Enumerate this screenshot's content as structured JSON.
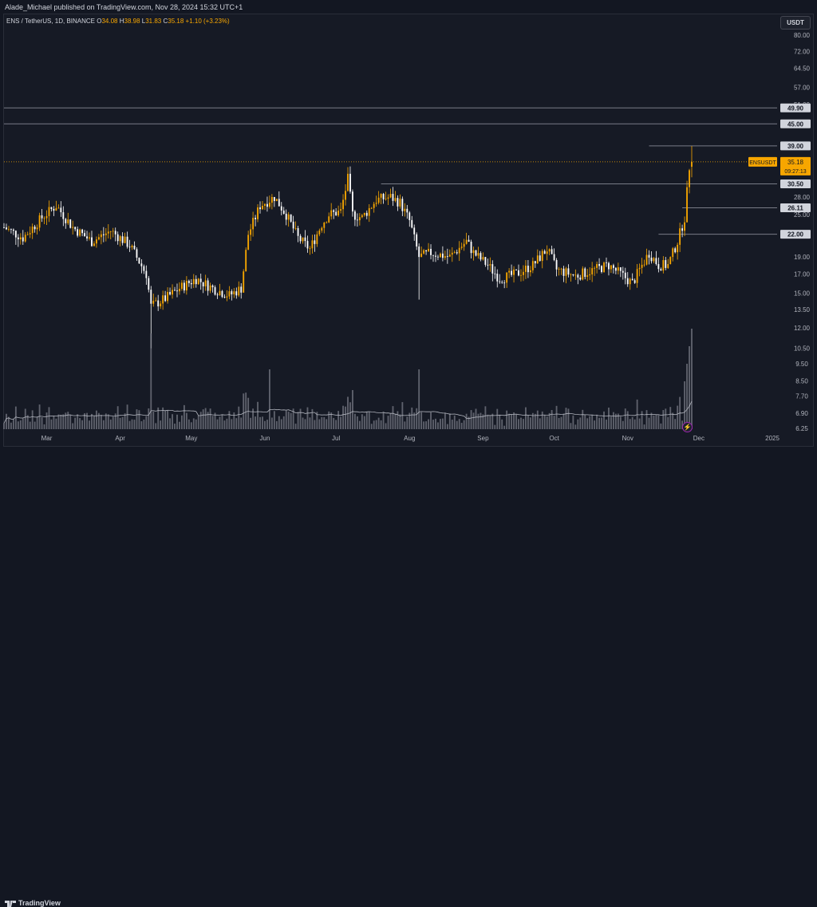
{
  "header": {
    "publisher_text": "Alade_Michael published on TradingView.com, Nov 28, 2024 15:32 UTC+1"
  },
  "legend": {
    "symbol": "ENS / TetherUS, 1D, BINANCE",
    "open_label": "O",
    "open": "34.08",
    "high_label": "H",
    "high": "38.98",
    "low_label": "L",
    "low": "31.83",
    "close_label": "C",
    "close": "35.18",
    "change": "+1.10 (+3.23%)"
  },
  "currency_button": "USDT",
  "footer": {
    "brand": "TradingView"
  },
  "flash_icon": "lightning-icon",
  "colors": {
    "background": "#161a25",
    "up": "#f7a600",
    "down": "#ffffff",
    "volume": "#787b86",
    "line": "#787b86",
    "price_tag": "#f7a600"
  },
  "chart_data": {
    "type": "candlestick",
    "title": "",
    "y_scale": "log",
    "ylim": [
      6.25,
      80.0
    ],
    "y_ticks": [
      "80.00",
      "72.00",
      "64.50",
      "57.00",
      "51.00",
      "45.00",
      "39.00",
      "35.18",
      "30.50",
      "28.00",
      "25.00",
      "22.00",
      "19.00",
      "17.00",
      "15.00",
      "13.50",
      "12.00",
      "10.50",
      "9.50",
      "8.50",
      "7.70",
      "6.90",
      "6.25"
    ],
    "x_ticks": [
      {
        "label": "Mar",
        "date": "2024-03-01"
      },
      {
        "label": "Apr",
        "date": "2024-04-01"
      },
      {
        "label": "May",
        "date": "2024-05-01"
      },
      {
        "label": "Jun",
        "date": "2024-06-01"
      },
      {
        "label": "Jul",
        "date": "2024-07-01"
      },
      {
        "label": "Aug",
        "date": "2024-08-01"
      },
      {
        "label": "Sep",
        "date": "2024-09-01"
      },
      {
        "label": "Oct",
        "date": "2024-10-01"
      },
      {
        "label": "Nov",
        "date": "2024-11-01"
      },
      {
        "label": "Dec",
        "date": "2024-12-01"
      },
      {
        "label": "2025",
        "date": "2025-01-01"
      }
    ],
    "x_range": [
      "2024-02-12",
      "2025-01-03"
    ],
    "horizontal_levels": [
      {
        "price": 49.9,
        "label": "49.90",
        "start": "2024-02-12"
      },
      {
        "price": 45.0,
        "label": "45.00",
        "start": "2024-02-12"
      },
      {
        "price": 39.0,
        "label": "39.00",
        "start": "2024-11-10"
      },
      {
        "price": 30.5,
        "label": "30.50",
        "start": "2024-07-20"
      },
      {
        "price": 26.11,
        "label": "26.11",
        "start": "2024-11-24"
      },
      {
        "price": 22.0,
        "label": "22.00",
        "start": "2024-11-14"
      }
    ],
    "current_price": {
      "symbol": "ENSUSDT",
      "price": "35.18",
      "countdown": "09:27:13"
    },
    "anchors": [
      [
        "2024-02-12",
        23.0
      ],
      [
        "2024-02-20",
        21.5
      ],
      [
        "2024-02-28",
        24.5
      ],
      [
        "2024-03-05",
        26.5
      ],
      [
        "2024-03-12",
        23.0
      ],
      [
        "2024-03-20",
        21.0
      ],
      [
        "2024-03-28",
        22.5
      ],
      [
        "2024-04-05",
        20.5
      ],
      [
        "2024-04-12",
        17.0
      ],
      [
        "2024-04-14",
        13.8
      ],
      [
        "2024-04-20",
        14.5
      ],
      [
        "2024-04-26",
        15.5
      ],
      [
        "2024-05-03",
        16.5
      ],
      [
        "2024-05-10",
        15.5
      ],
      [
        "2024-05-17",
        14.8
      ],
      [
        "2024-05-22",
        15.5
      ],
      [
        "2024-05-25",
        22.0
      ],
      [
        "2024-05-30",
        26.5
      ],
      [
        "2024-06-05",
        28.0
      ],
      [
        "2024-06-10",
        25.0
      ],
      [
        "2024-06-15",
        21.5
      ],
      [
        "2024-06-20",
        20.0
      ],
      [
        "2024-06-25",
        23.5
      ],
      [
        "2024-06-28",
        25.0
      ],
      [
        "2024-07-03",
        25.5
      ],
      [
        "2024-07-06",
        31.5
      ],
      [
        "2024-07-08",
        25.0
      ],
      [
        "2024-07-12",
        24.5
      ],
      [
        "2024-07-18",
        27.5
      ],
      [
        "2024-07-24",
        28.0
      ],
      [
        "2024-07-28",
        27.0
      ],
      [
        "2024-08-01",
        24.0
      ],
      [
        "2024-08-05",
        19.0
      ],
      [
        "2024-08-10",
        19.5
      ],
      [
        "2024-08-18",
        19.0
      ],
      [
        "2024-08-25",
        21.0
      ],
      [
        "2024-08-28",
        19.5
      ],
      [
        "2024-09-03",
        18.0
      ],
      [
        "2024-09-08",
        16.5
      ],
      [
        "2024-09-15",
        17.0
      ],
      [
        "2024-09-22",
        18.0
      ],
      [
        "2024-09-28",
        20.0
      ],
      [
        "2024-10-02",
        17.5
      ],
      [
        "2024-10-10",
        16.8
      ],
      [
        "2024-10-18",
        17.5
      ],
      [
        "2024-10-24",
        18.0
      ],
      [
        "2024-10-30",
        16.8
      ],
      [
        "2024-11-03",
        16.0
      ],
      [
        "2024-11-06",
        17.5
      ],
      [
        "2024-11-10",
        19.5
      ],
      [
        "2024-11-14",
        18.0
      ],
      [
        "2024-11-18",
        18.0
      ],
      [
        "2024-11-22",
        21.0
      ],
      [
        "2024-11-25",
        24.5
      ],
      [
        "2024-11-27",
        34.08
      ],
      [
        "2024-11-28",
        35.18
      ]
    ],
    "volume_ylim": [
      0,
      100
    ]
  }
}
